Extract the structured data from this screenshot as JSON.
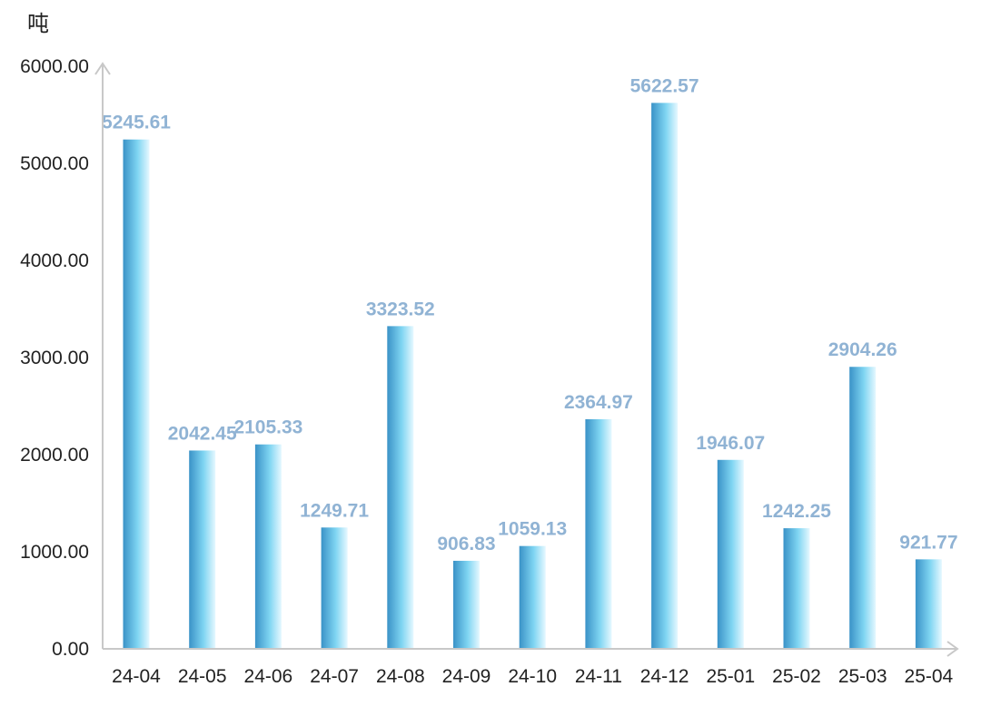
{
  "colors": {
    "bar_light": "#e6f8ff",
    "bar_mid": "#7fd5f2",
    "bar_dark": "#3a92c7",
    "label": "#90b3d4",
    "axis": "#c8c8c8"
  },
  "chart_data": {
    "type": "bar",
    "unit_label": "吨",
    "categories": [
      "24-04",
      "24-05",
      "24-06",
      "24-07",
      "24-08",
      "24-09",
      "24-10",
      "24-11",
      "24-12",
      "25-01",
      "25-02",
      "25-03",
      "25-04"
    ],
    "values": [
      5245.61,
      2042.45,
      2105.33,
      1249.71,
      3323.52,
      906.83,
      1059.13,
      2364.97,
      5622.57,
      1946.07,
      1242.25,
      2904.26,
      921.77
    ],
    "value_labels": [
      "5245.61",
      "2042.45",
      "2105.33",
      "1249.71",
      "3323.52",
      "906.83",
      "1059.13",
      "2364.97",
      "5622.57",
      "1946.07",
      "1242.25",
      "2904.26",
      "921.77"
    ],
    "ylim": [
      0,
      6000
    ],
    "yticks": [
      "0.00",
      "1000.00",
      "2000.00",
      "3000.00",
      "4000.00",
      "5000.00",
      "6000.00"
    ],
    "grid": false,
    "legend": "none"
  }
}
